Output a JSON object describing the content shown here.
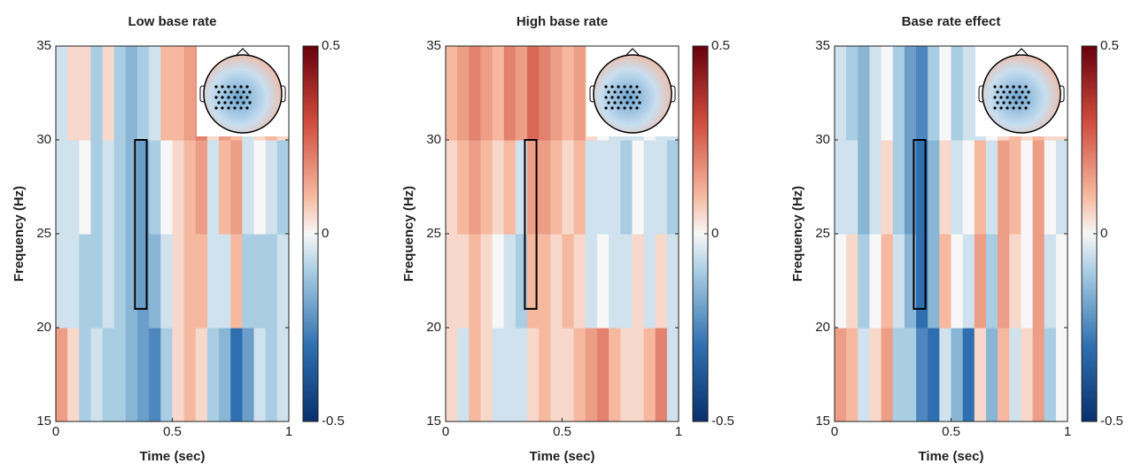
{
  "chart_data": [
    {
      "type": "heatmap",
      "title": "Low base rate",
      "xlabel": "Time (sec)",
      "ylabel": "Frequency (Hz)",
      "xlim": [
        0,
        1
      ],
      "ylim": [
        15,
        35
      ],
      "xticks": [
        0,
        0.5,
        1
      ],
      "yticks": [
        15,
        20,
        25,
        30,
        35
      ],
      "clim": [
        -0.5,
        0.5
      ],
      "cticks": [
        -0.5,
        0,
        0.5
      ],
      "x": [
        0.025,
        0.075,
        0.125,
        0.175,
        0.225,
        0.275,
        0.325,
        0.375,
        0.425,
        0.475,
        0.525,
        0.575,
        0.625,
        0.675,
        0.725,
        0.775,
        0.825,
        0.875,
        0.925,
        0.975
      ],
      "y": [
        17.5,
        22.5,
        27.5,
        32.5
      ],
      "z": [
        [
          0.15,
          0.05,
          -0.1,
          -0.05,
          -0.1,
          -0.1,
          -0.15,
          -0.2,
          -0.25,
          -0.1,
          0.05,
          0.1,
          0.05,
          -0.1,
          -0.15,
          -0.3,
          -0.2,
          -0.05,
          -0.1,
          -0.05
        ],
        [
          -0.05,
          -0.05,
          -0.1,
          -0.1,
          -0.05,
          -0.1,
          -0.15,
          -0.2,
          -0.15,
          -0.05,
          0.05,
          0.1,
          0.1,
          -0.05,
          -0.05,
          0.1,
          -0.1,
          -0.1,
          -0.1,
          -0.05
        ],
        [
          -0.05,
          -0.05,
          0,
          -0.1,
          -0.05,
          -0.1,
          -0.15,
          -0.2,
          -0.1,
          0,
          0.05,
          0.1,
          0.15,
          -0.05,
          0.1,
          0.15,
          -0.05,
          0,
          -0.05,
          -0.1
        ],
        [
          -0.05,
          0.05,
          0.05,
          -0.1,
          0.05,
          -0.1,
          -0.15,
          -0.1,
          -0.05,
          0.1,
          0.1,
          0.15,
          0.2,
          0.05,
          0.15,
          0.1,
          -0.05,
          0.05,
          0.1,
          0.05
        ]
      ],
      "roi": {
        "x": [
          0.34,
          0.39
        ],
        "y": [
          21,
          30
        ]
      }
    },
    {
      "type": "heatmap",
      "title": "High base rate",
      "xlabel": "Time (sec)",
      "ylabel": "Frequency (Hz)",
      "xlim": [
        0,
        1
      ],
      "ylim": [
        15,
        35
      ],
      "xticks": [
        0,
        0.5,
        1
      ],
      "yticks": [
        15,
        20,
        25,
        30,
        35
      ],
      "clim": [
        -0.5,
        0.5
      ],
      "cticks": [
        -0.5,
        0,
        0.5
      ],
      "x": [
        0.025,
        0.075,
        0.125,
        0.175,
        0.225,
        0.275,
        0.325,
        0.375,
        0.425,
        0.475,
        0.525,
        0.575,
        0.625,
        0.675,
        0.725,
        0.775,
        0.825,
        0.875,
        0.925,
        0.975
      ],
      "y": [
        17.5,
        22.5,
        27.5,
        32.5
      ],
      "z": [
        [
          0.05,
          -0.05,
          0.1,
          0.05,
          -0.05,
          -0.05,
          -0.05,
          0.05,
          0.1,
          0.05,
          0.05,
          0.1,
          0.15,
          0.2,
          0.1,
          0.05,
          0.05,
          0.1,
          0.2,
          -0.05
        ],
        [
          0.05,
          0.05,
          0.1,
          0.05,
          0,
          -0.05,
          -0.1,
          0.1,
          0.1,
          0.05,
          0.1,
          0.05,
          -0.05,
          0,
          -0.05,
          -0.05,
          0.05,
          -0.05,
          0.05,
          -0.05
        ],
        [
          0.05,
          0.1,
          0.15,
          0.1,
          0.05,
          0.1,
          -0.05,
          0.15,
          0.15,
          0.1,
          0.05,
          0.1,
          -0.05,
          -0.05,
          -0.05,
          -0.1,
          0,
          -0.05,
          -0.05,
          -0.1
        ],
        [
          0.1,
          0.15,
          0.2,
          0.15,
          0.1,
          0.2,
          0.15,
          0.25,
          0.2,
          0.15,
          0.1,
          0.15,
          0.05,
          0,
          -0.05,
          -0.05,
          -0.05,
          0,
          -0.05,
          -0.05
        ]
      ],
      "roi": {
        "x": [
          0.34,
          0.39
        ],
        "y": [
          21,
          30
        ]
      }
    },
    {
      "type": "heatmap",
      "title": "Base rate effect",
      "xlabel": "Time (sec)",
      "ylabel": "Frequency (Hz)",
      "xlim": [
        0,
        1
      ],
      "ylim": [
        15,
        35
      ],
      "xticks": [
        0,
        0.5,
        1
      ],
      "yticks": [
        15,
        20,
        25,
        30,
        35
      ],
      "clim": [
        -0.5,
        0.5
      ],
      "cticks": [
        -0.5,
        0,
        0.5
      ],
      "x": [
        0.025,
        0.075,
        0.125,
        0.175,
        0.225,
        0.275,
        0.325,
        0.375,
        0.425,
        0.475,
        0.525,
        0.575,
        0.625,
        0.675,
        0.725,
        0.775,
        0.825,
        0.875,
        0.925,
        0.975
      ],
      "y": [
        17.5,
        22.5,
        27.5,
        32.5
      ],
      "z": [
        [
          0.15,
          0.1,
          -0.05,
          0.05,
          0.15,
          -0.1,
          -0.1,
          -0.25,
          -0.3,
          -0.05,
          -0.15,
          -0.3,
          0.05,
          -0.15,
          0.1,
          -0.05,
          0.05,
          0.15,
          -0.1,
          0
        ],
        [
          0,
          0.05,
          -0.1,
          0,
          0.1,
          -0.05,
          -0.15,
          -0.3,
          -0.15,
          0.1,
          0,
          -0.05,
          0.15,
          -0.1,
          0.15,
          0.05,
          0,
          0.15,
          -0.05,
          0
        ],
        [
          -0.05,
          -0.05,
          -0.15,
          -0.05,
          0.05,
          -0.1,
          -0.2,
          -0.3,
          -0.15,
          0.05,
          -0.05,
          0,
          0.1,
          -0.05,
          0.15,
          0.1,
          0,
          0.15,
          0,
          -0.05
        ],
        [
          -0.05,
          -0.1,
          -0.15,
          -0.05,
          0,
          -0.1,
          -0.2,
          -0.25,
          -0.1,
          0,
          -0.1,
          -0.05,
          -0.05,
          0,
          0.05,
          0.1,
          0.05,
          0.1,
          0.05,
          0.05
        ]
      ],
      "roi": {
        "x": [
          0.34,
          0.39
        ],
        "y": [
          21,
          30
        ]
      }
    }
  ]
}
